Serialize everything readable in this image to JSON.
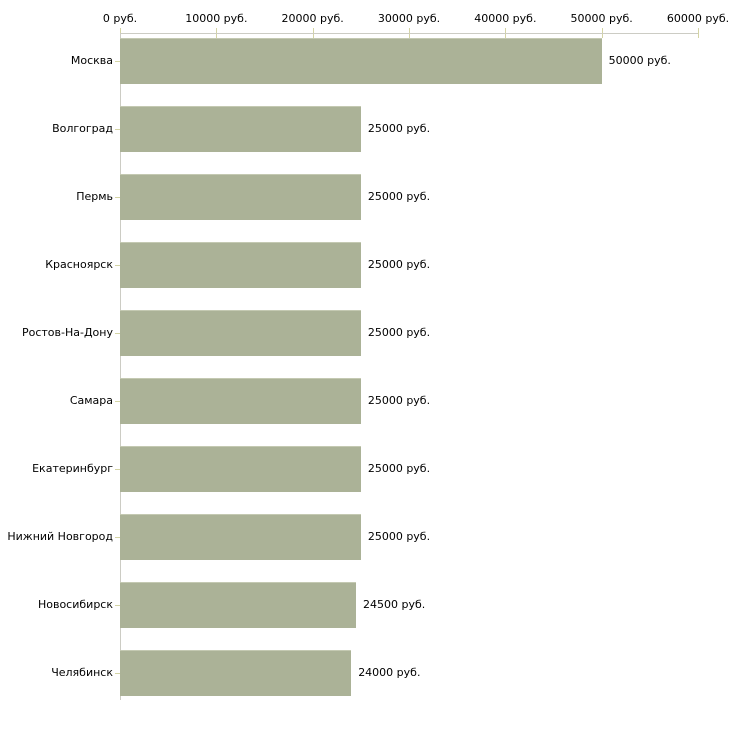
{
  "chart_data": {
    "type": "bar",
    "orientation": "horizontal",
    "title": "",
    "xlabel": "",
    "ylabel": "",
    "categories": [
      "Москва",
      "Волгоград",
      "Пермь",
      "Красноярск",
      "Ростов-На-Дону",
      "Самара",
      "Екатеринбург",
      "Нижний Новгород",
      "Новосибирск",
      "Челябинск"
    ],
    "values": [
      50000,
      25000,
      25000,
      25000,
      25000,
      25000,
      25000,
      25000,
      24500,
      24000
    ],
    "value_labels": [
      "50000 руб.",
      "25000 руб.",
      "25000 руб.",
      "25000 руб.",
      "25000 руб.",
      "25000 руб.",
      "25000 руб.",
      "25000 руб.",
      "24500 руб.",
      "24000 руб."
    ],
    "x_ticks": [
      0,
      10000,
      20000,
      30000,
      40000,
      50000,
      60000
    ],
    "x_tick_labels": [
      "0 руб.",
      "10000 руб.",
      "20000 руб.",
      "30000 руб.",
      "40000 руб.",
      "50000 руб.",
      "60000 руб."
    ],
    "xlim": [
      0,
      60000
    ],
    "grid": false,
    "legend": false,
    "colors": {
      "bar_fill": "#abb297",
      "bar_edge": "#c4c9b2",
      "axis_line": "#ccccc4",
      "tick_mark": "#d4d4a4",
      "text": "#000000",
      "background": "#ffffff"
    }
  }
}
